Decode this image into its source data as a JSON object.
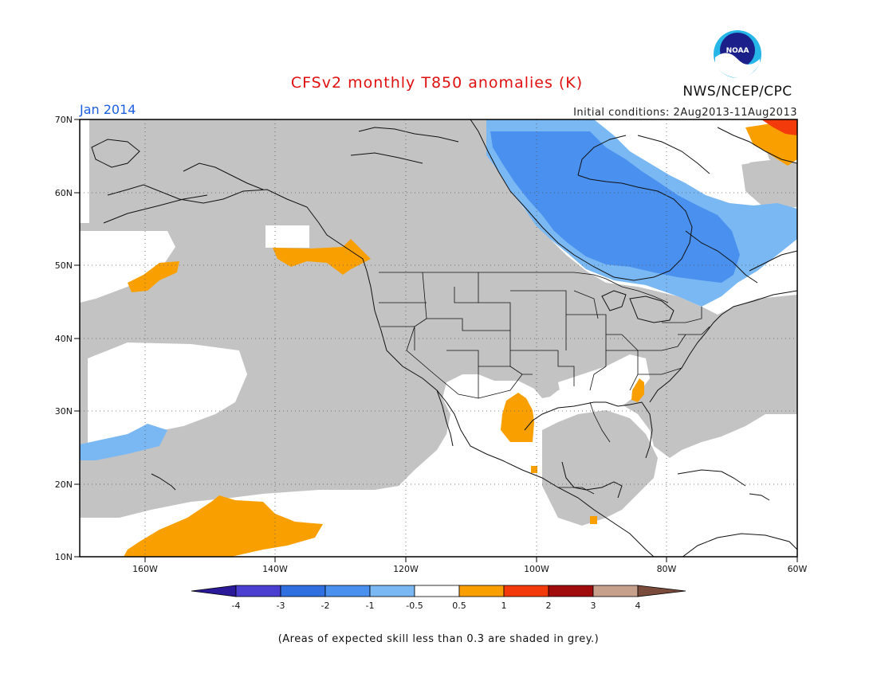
{
  "header": {
    "title": "CFSv2 monthly T850 anomalies (K)",
    "month": "Jan 2014",
    "initial_conditions": "Initial conditions: 2Aug2013-11Aug2013",
    "agency": "NWS/NCEP/CPC",
    "logo_text": "NOAA"
  },
  "map": {
    "lon_labels": [
      "160W",
      "140W",
      "120W",
      "100W",
      "80W",
      "60W"
    ],
    "lat_labels": [
      "70N",
      "60N",
      "50N",
      "40N",
      "30N",
      "20N",
      "10N"
    ]
  },
  "colorbar": {
    "labels": [
      "-4",
      "-3",
      "-2",
      "-1",
      "-0.5",
      "0.5",
      "1",
      "2",
      "3",
      "4"
    ],
    "colors": {
      "lt_neg4": "#2a1a9a",
      "neg4_neg3": "#4a3fd0",
      "neg3_neg2": "#2f6fe0",
      "neg2_neg1": "#4a90ee",
      "neg1_neg05": "#7ab8f4",
      "neg05_05": "#ffffff",
      "p05_1": "#f9a000",
      "p1_2": "#f23a0a",
      "p2_3": "#a00c0c",
      "p3_4": "#c7a08c",
      "gt4": "#7a4a3a"
    }
  },
  "colors": {
    "grey_mask": "#c3c3c3"
  },
  "footnote": "(Areas of expected skill less than 0.3 are shaded in grey.)"
}
